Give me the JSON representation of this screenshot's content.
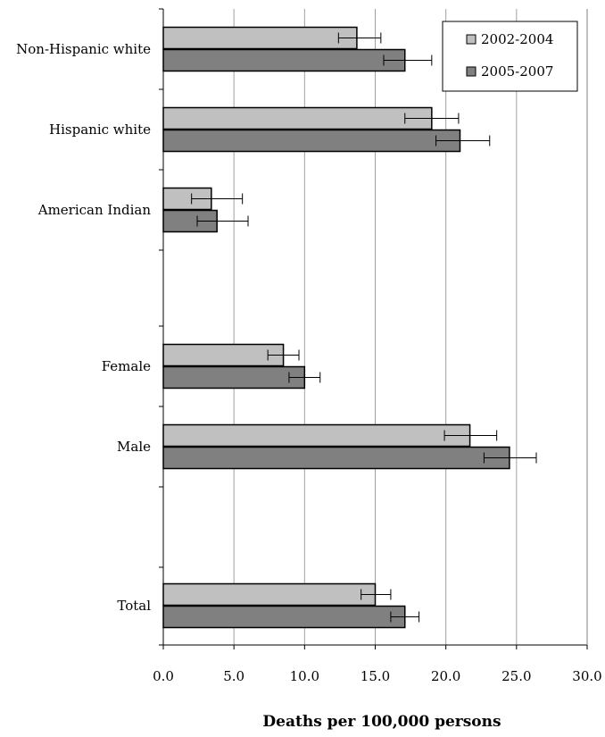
{
  "chart_data": {
    "type": "bar",
    "orientation": "horizontal",
    "xlabel": "Deaths per 100,000 persons",
    "xlim": [
      0,
      30
    ],
    "xticks": [
      0,
      5,
      10,
      15,
      20,
      25,
      30
    ],
    "xtick_labels": [
      "0.0",
      "5.0",
      "10.0",
      "15.0",
      "20.0",
      "25.0",
      "30.0"
    ],
    "grid": "vertical",
    "legend_position": "top-right",
    "colors": {
      "2002-2004": "#c0c0c0",
      "2005-2007": "#808080"
    },
    "series": [
      {
        "name": "2002-2004",
        "values": [
          13.7,
          19.0,
          3.4,
          8.5,
          21.7,
          15.0
        ],
        "error_low": [
          12.4,
          17.1,
          2.0,
          7.4,
          19.9,
          14.0
        ],
        "error_high": [
          15.4,
          20.9,
          5.6,
          9.6,
          23.6,
          16.1
        ]
      },
      {
        "name": "2005-2007",
        "values": [
          17.1,
          21.0,
          3.8,
          10.0,
          24.5,
          17.1
        ],
        "error_low": [
          15.6,
          19.3,
          2.4,
          8.9,
          22.7,
          16.1
        ],
        "error_high": [
          19.0,
          23.1,
          6.0,
          11.1,
          26.4,
          18.1
        ]
      }
    ],
    "categories": [
      "Non-Hispanic white",
      "Hispanic white",
      "American Indian",
      "Female",
      "Male",
      "Total"
    ]
  }
}
